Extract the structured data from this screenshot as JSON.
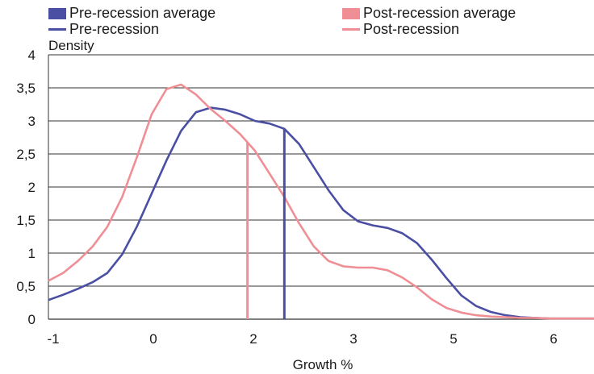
{
  "chart_data": {
    "type": "line",
    "xlabel": "Growth %",
    "ylabel": "Density",
    "ylim": [
      0,
      4
    ],
    "yticks": [
      "0",
      "0,5",
      "1",
      "1,5",
      "2",
      "2,5",
      "3",
      "3,5",
      "4"
    ],
    "x_tick_labels": [
      "-1",
      "0",
      "2",
      "3",
      "5",
      "6"
    ],
    "grid": "horizontal",
    "legend_position": "top",
    "legend": [
      {
        "label": "Pre-recession average",
        "kind": "bar",
        "color": "#4a4fa3"
      },
      {
        "label": "Post-recession average",
        "kind": "bar",
        "color": "#ef8f95"
      },
      {
        "label": "Pre-recession",
        "kind": "line",
        "color": "#4a4fa3"
      },
      {
        "label": "Post-recession",
        "kind": "line",
        "color": "#ef8f95"
      }
    ],
    "series": [
      {
        "name": "Pre-recession",
        "color": "#4a4fa3",
        "x": [
          -1.0,
          -0.8,
          -0.6,
          -0.4,
          -0.2,
          0.0,
          0.2,
          0.4,
          0.6,
          0.8,
          1.0,
          1.2,
          1.4,
          1.6,
          1.8,
          2.0,
          2.2,
          2.4,
          2.6,
          2.8,
          3.0,
          3.2,
          3.4,
          3.6,
          3.8,
          4.0,
          4.2,
          4.4,
          4.6,
          4.8,
          5.0,
          5.2,
          5.4,
          5.6,
          5.8,
          6.0,
          6.2,
          6.4
        ],
        "y": [
          0.29,
          0.37,
          0.46,
          0.56,
          0.7,
          0.98,
          1.4,
          1.9,
          2.4,
          2.85,
          3.13,
          3.2,
          3.17,
          3.1,
          3.0,
          2.96,
          2.88,
          2.65,
          2.3,
          1.95,
          1.65,
          1.48,
          1.42,
          1.38,
          1.3,
          1.15,
          0.9,
          0.62,
          0.36,
          0.2,
          0.11,
          0.06,
          0.03,
          0.02,
          0.01,
          0.01,
          0.01,
          0.01
        ]
      },
      {
        "name": "Post-recession",
        "color": "#ef8f95",
        "x": [
          -1.0,
          -0.8,
          -0.6,
          -0.4,
          -0.2,
          0.0,
          0.2,
          0.4,
          0.6,
          0.8,
          1.0,
          1.2,
          1.4,
          1.6,
          1.8,
          2.0,
          2.2,
          2.4,
          2.6,
          2.8,
          3.0,
          3.2,
          3.4,
          3.6,
          3.8,
          4.0,
          4.2,
          4.4,
          4.6,
          4.8,
          5.0,
          5.2,
          5.4,
          5.6,
          5.8,
          6.0,
          6.2,
          6.4
        ],
        "y": [
          0.58,
          0.7,
          0.88,
          1.1,
          1.4,
          1.85,
          2.45,
          3.1,
          3.48,
          3.55,
          3.4,
          3.18,
          3.0,
          2.8,
          2.55,
          2.2,
          1.85,
          1.45,
          1.1,
          0.88,
          0.8,
          0.78,
          0.78,
          0.74,
          0.63,
          0.48,
          0.3,
          0.17,
          0.1,
          0.06,
          0.04,
          0.03,
          0.02,
          0.02,
          0.01,
          0.01,
          0.01,
          0.01
        ]
      }
    ],
    "averages": [
      {
        "name": "Pre-recession average",
        "x": 2.2,
        "color": "#4a4fa3"
      },
      {
        "name": "Post-recession average",
        "x": 1.7,
        "color": "#ef8f95"
      }
    ]
  }
}
